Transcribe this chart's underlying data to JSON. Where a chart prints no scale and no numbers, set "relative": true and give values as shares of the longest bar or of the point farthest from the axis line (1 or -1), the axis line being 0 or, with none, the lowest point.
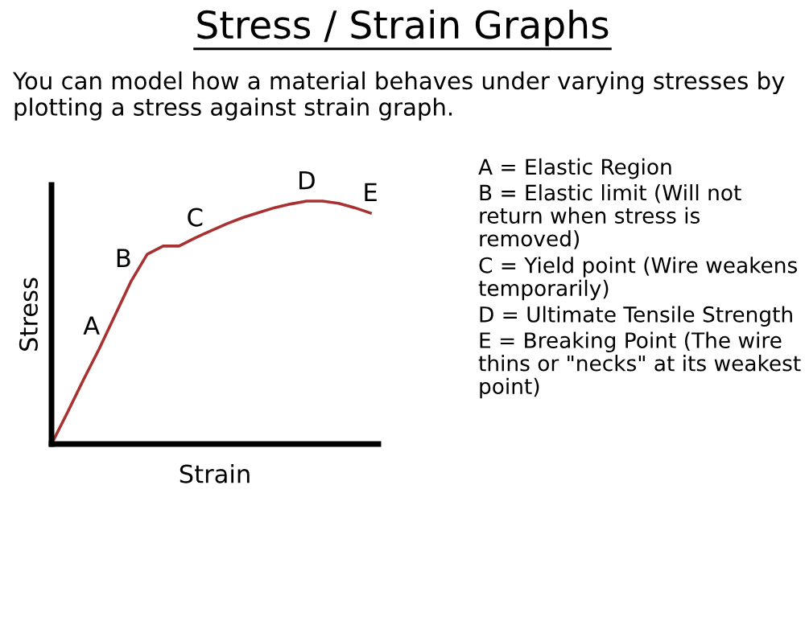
{
  "chart_data": {
    "type": "line",
    "relative": true,
    "title": "Stress / Strain Graphs",
    "subtitle": "You can model how a material behaves under varying stresses by plotting a stress against strain graph.",
    "xlabel": "Strain",
    "ylabel": "Stress",
    "categories": [
      null,
      null,
      null,
      null,
      null,
      null,
      null,
      null,
      null,
      null,
      null,
      null,
      null,
      null,
      null,
      null,
      null,
      null,
      null,
      null,
      null
    ],
    "series": [
      {
        "color": "#a83232",
        "values": [
          0,
          0.13,
          0.264,
          0.393,
          0.532,
          0.671,
          0.781,
          0.815,
          0.815,
          0.848,
          0.878,
          0.907,
          0.932,
          0.953,
          0.973,
          0.988,
          1,
          1,
          0.991,
          0.973,
          0.951
        ]
      }
    ],
    "annotations": [
      {
        "text": "A",
        "y": 0.393
      },
      {
        "text": "B",
        "y": 0.671
      },
      {
        "text": "C",
        "y": 0.848
      },
      {
        "text": "D",
        "y": 1
      },
      {
        "text": "E",
        "y": 0.951
      },
      "A = Elastic Region",
      "B = Elastic limit (Will not return when stress is removed)",
      "C = Yield point (Wire weakens temporarily)",
      "D = Ultimate Tensile Strength",
      "E = Breaking Point (The wire thins or \"necks\" at its weakest point)"
    ]
  }
}
